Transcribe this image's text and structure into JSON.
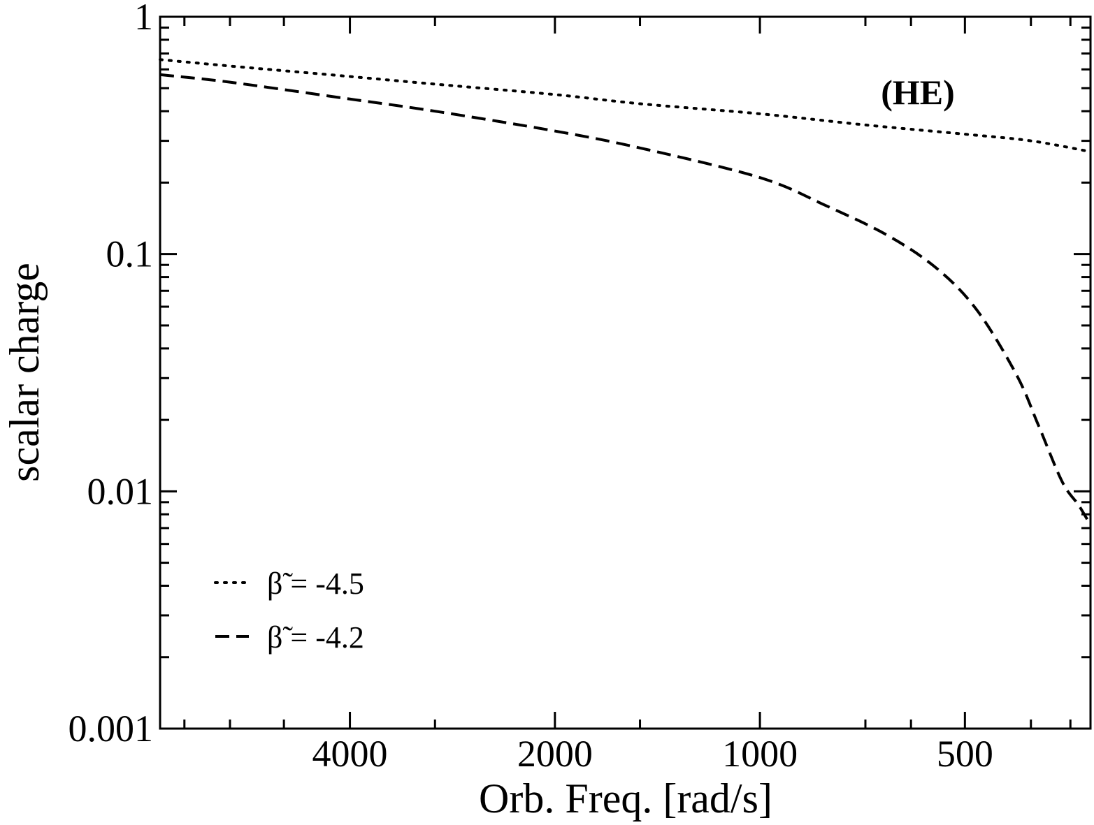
{
  "chart_data": {
    "type": "line",
    "xlabel": "Orb. Freq. [rad/s]",
    "ylabel": "scalar charge",
    "x_scale": "log",
    "x_reversed": true,
    "y_scale": "log",
    "xlim": [
      7600,
      327
    ],
    "ylim": [
      0.001,
      1
    ],
    "x_ticks": [
      {
        "value": 4000,
        "label": "4000"
      },
      {
        "value": 2000,
        "label": "2000"
      },
      {
        "value": 1000,
        "label": "1000"
      },
      {
        "value": 500,
        "label": "500"
      }
    ],
    "y_ticks": [
      {
        "value": 1,
        "label": "1"
      },
      {
        "value": 0.1,
        "label": "0.1"
      },
      {
        "value": 0.01,
        "label": "0.01"
      },
      {
        "value": 0.001,
        "label": "0.001"
      }
    ],
    "annotation": "(HE)",
    "legend_position": "bottom-left",
    "grid": false,
    "series": [
      {
        "name": "β̃ = -4.5",
        "style": "dotted",
        "color": "#000000",
        "x": [
          7600,
          6000,
          4000,
          3000,
          2000,
          1500,
          1000,
          700,
          500,
          400,
          327
        ],
        "y": [
          0.66,
          0.62,
          0.56,
          0.52,
          0.47,
          0.43,
          0.39,
          0.35,
          0.32,
          0.3,
          0.27
        ]
      },
      {
        "name": "β̃ = -4.2",
        "style": "dashed",
        "color": "#000000",
        "x": [
          7600,
          6000,
          4000,
          3000,
          2000,
          1500,
          1000,
          800,
          650,
          550,
          480,
          420,
          390,
          360,
          340,
          327
        ],
        "y": [
          0.57,
          0.53,
          0.45,
          0.4,
          0.33,
          0.28,
          0.21,
          0.16,
          0.12,
          0.087,
          0.058,
          0.031,
          0.019,
          0.011,
          0.0087,
          0.0072
        ]
      }
    ]
  }
}
